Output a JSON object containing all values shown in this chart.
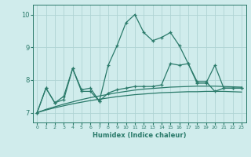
{
  "x": [
    0,
    1,
    2,
    3,
    4,
    5,
    6,
    7,
    8,
    9,
    10,
    11,
    12,
    13,
    14,
    15,
    16,
    17,
    18,
    19,
    20,
    21,
    22,
    23
  ],
  "y_main1": [
    7.0,
    7.75,
    7.3,
    7.4,
    8.35,
    7.65,
    7.65,
    7.35,
    8.45,
    9.05,
    9.75,
    10.0,
    9.45,
    9.2,
    9.3,
    9.45,
    9.05,
    8.5,
    7.95,
    7.95,
    7.65,
    7.75,
    7.75,
    7.75
  ],
  "y_main2": [
    7.0,
    7.75,
    7.3,
    7.5,
    8.35,
    7.7,
    7.75,
    7.35,
    7.6,
    7.7,
    7.75,
    7.8,
    7.8,
    7.8,
    7.85,
    8.5,
    8.45,
    8.5,
    7.9,
    7.9,
    8.45,
    7.75,
    7.75,
    7.75
  ],
  "y_smooth1": [
    7.0,
    7.1,
    7.18,
    7.26,
    7.33,
    7.4,
    7.46,
    7.51,
    7.56,
    7.61,
    7.65,
    7.69,
    7.72,
    7.74,
    7.76,
    7.78,
    7.79,
    7.8,
    7.81,
    7.81,
    7.81,
    7.8,
    7.79,
    7.78
  ],
  "y_smooth2": [
    7.0,
    7.08,
    7.15,
    7.21,
    7.27,
    7.32,
    7.37,
    7.41,
    7.45,
    7.49,
    7.52,
    7.55,
    7.57,
    7.59,
    7.61,
    7.62,
    7.63,
    7.64,
    7.64,
    7.65,
    7.65,
    7.65,
    7.64,
    7.63
  ],
  "line_color": "#2a7a6a",
  "bg_color": "#d0ecec",
  "grid_color": "#afd4d4",
  "xlabel": "Humidex (Indice chaleur)",
  "ylim": [
    6.7,
    10.3
  ],
  "xlim": [
    -0.5,
    23.5
  ],
  "yticks": [
    7,
    8,
    9,
    10
  ],
  "xticks": [
    0,
    1,
    2,
    3,
    4,
    5,
    6,
    7,
    8,
    9,
    10,
    11,
    12,
    13,
    14,
    15,
    16,
    17,
    18,
    19,
    20,
    21,
    22,
    23
  ]
}
